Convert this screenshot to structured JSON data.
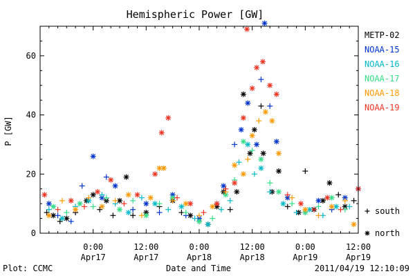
{
  "chart_data": {
    "type": "scatter",
    "title": "Hemispheric Power [GW]",
    "xlabel": "Date and Time",
    "ylabel": "P [GW]",
    "x_unit": "hour of day (clock time), Apr 17 00:00 = 0",
    "xlim": [
      -12,
      60
    ],
    "ylim": [
      0,
      70
    ],
    "y_ticks": [
      0,
      20,
      40,
      60
    ],
    "x_ticks": [
      {
        "x": 0,
        "time": "0:00",
        "date": "Apr17"
      },
      {
        "x": 12,
        "time": "12:00",
        "date": "Apr17"
      },
      {
        "x": 24,
        "time": "0:00",
        "date": "Apr18"
      },
      {
        "x": 36,
        "time": "12:00",
        "date": "Apr18"
      },
      {
        "x": 48,
        "time": "0:00",
        "date": "Apr19"
      },
      {
        "x": 60,
        "time": "12:00",
        "date": "Apr19"
      }
    ],
    "legend_placement": "right",
    "markers": [
      {
        "symbol": "+",
        "label": "south"
      },
      {
        "symbol": "*",
        "label": "north"
      }
    ],
    "series": [
      {
        "name": "METP-02",
        "color": "#000000",
        "points": [
          [
            -10.5,
            7,
            "s"
          ],
          [
            -9,
            6,
            "n"
          ],
          [
            -7.5,
            4,
            "s"
          ],
          [
            -6,
            5,
            "n"
          ],
          [
            -4,
            7,
            "s"
          ],
          [
            -1.5,
            11,
            "n"
          ],
          [
            0,
            13,
            "n"
          ],
          [
            1.5,
            8,
            "s"
          ],
          [
            3,
            11,
            "n"
          ],
          [
            4.5,
            6,
            "s"
          ],
          [
            6,
            11,
            "n"
          ],
          [
            7.5,
            19,
            "n"
          ],
          [
            9,
            6,
            "s"
          ],
          [
            12,
            7,
            "n"
          ],
          [
            15,
            9,
            "s"
          ],
          [
            18,
            11,
            "n"
          ],
          [
            20,
            7,
            "s"
          ],
          [
            22,
            6,
            "n"
          ],
          [
            24,
            4,
            "s"
          ],
          [
            26,
            3,
            "n"
          ],
          [
            28,
            9,
            "n"
          ],
          [
            29.5,
            14,
            "n"
          ],
          [
            31,
            8,
            "s"
          ],
          [
            32.5,
            14,
            "n"
          ],
          [
            34,
            47,
            "n"
          ],
          [
            35.5,
            27,
            "n"
          ],
          [
            36.5,
            35,
            "n"
          ],
          [
            38,
            43,
            "s"
          ],
          [
            38.5,
            27,
            "n"
          ],
          [
            40.5,
            14,
            "n"
          ],
          [
            42,
            21,
            "n"
          ],
          [
            44,
            9,
            "s"
          ],
          [
            46.5,
            7,
            "n"
          ],
          [
            48,
            21,
            "s"
          ],
          [
            50,
            8,
            "n"
          ],
          [
            52,
            11,
            "n"
          ],
          [
            53.5,
            17,
            "n"
          ],
          [
            55.5,
            13,
            "s"
          ],
          [
            57,
            9,
            "n"
          ],
          [
            59,
            11,
            "s"
          ]
        ]
      },
      {
        "name": "NOAA-15",
        "color": "#0033cc",
        "points": [
          [
            -10,
            10,
            "n"
          ],
          [
            -8,
            6,
            "s"
          ],
          [
            -5,
            4,
            "s"
          ],
          [
            -2.5,
            16,
            "s"
          ],
          [
            0,
            26,
            "n"
          ],
          [
            2,
            12,
            "n"
          ],
          [
            3,
            19,
            "s"
          ],
          [
            5,
            16,
            "n"
          ],
          [
            9,
            8,
            "s"
          ],
          [
            12,
            10,
            "n"
          ],
          [
            15,
            7,
            "s"
          ],
          [
            18,
            13,
            "n"
          ],
          [
            21,
            6,
            "s"
          ],
          [
            24,
            5,
            "n"
          ],
          [
            28,
            10,
            "s"
          ],
          [
            29.5,
            16,
            "n"
          ],
          [
            32,
            30,
            "s"
          ],
          [
            33.5,
            35,
            "n"
          ],
          [
            35,
            44,
            "n"
          ],
          [
            37,
            30,
            "n"
          ],
          [
            38,
            52,
            "s"
          ],
          [
            38.8,
            71,
            "n"
          ],
          [
            40,
            43,
            "s"
          ],
          [
            41.5,
            31,
            "n"
          ],
          [
            44,
            12,
            "n"
          ],
          [
            48,
            7,
            "s"
          ],
          [
            51,
            11,
            "n"
          ],
          [
            54,
            8,
            "s"
          ],
          [
            57,
            12,
            "n"
          ],
          [
            60,
            15,
            "n"
          ]
        ]
      },
      {
        "name": "NOAA-16",
        "color": "#00b8c8",
        "points": [
          [
            -10,
            8,
            "s"
          ],
          [
            -7,
            5,
            "n"
          ],
          [
            -4,
            9,
            "s"
          ],
          [
            -1,
            11,
            "n"
          ],
          [
            2,
            13,
            "s"
          ],
          [
            5,
            10,
            "s"
          ],
          [
            8,
            7,
            "n"
          ],
          [
            11,
            12,
            "s"
          ],
          [
            14,
            10,
            "n"
          ],
          [
            17,
            8,
            "s"
          ],
          [
            20,
            9,
            "n"
          ],
          [
            23,
            5,
            "s"
          ],
          [
            26,
            3,
            "n"
          ],
          [
            29,
            8,
            "s"
          ],
          [
            31,
            11,
            "s"
          ],
          [
            33,
            24,
            "s"
          ],
          [
            35,
            30,
            "n"
          ],
          [
            36.5,
            20,
            "s"
          ],
          [
            38,
            22,
            "n"
          ],
          [
            40,
            14,
            "s"
          ],
          [
            43,
            10,
            "n"
          ],
          [
            46,
            7,
            "s"
          ],
          [
            49,
            8,
            "n"
          ],
          [
            52,
            6,
            "s"
          ],
          [
            55,
            9,
            "n"
          ],
          [
            58,
            9,
            "s"
          ]
        ]
      },
      {
        "name": "NOAA-17",
        "color": "#33dd88",
        "points": [
          [
            -9,
            9,
            "n"
          ],
          [
            -6,
            7,
            "s"
          ],
          [
            -3,
            10,
            "n"
          ],
          [
            0,
            9,
            "s"
          ],
          [
            3,
            12,
            "s"
          ],
          [
            6,
            8,
            "n"
          ],
          [
            9,
            11,
            "s"
          ],
          [
            12,
            6,
            "n"
          ],
          [
            15,
            10,
            "s"
          ],
          [
            18,
            12,
            "n"
          ],
          [
            21,
            7,
            "s"
          ],
          [
            24,
            4,
            "n"
          ],
          [
            27,
            5,
            "s"
          ],
          [
            30,
            13,
            "n"
          ],
          [
            32,
            18,
            "s"
          ],
          [
            34,
            31,
            "n"
          ],
          [
            36,
            28,
            "s"
          ],
          [
            38,
            25,
            "n"
          ],
          [
            40,
            17,
            "s"
          ],
          [
            42,
            14,
            "n"
          ],
          [
            45,
            10,
            "s"
          ],
          [
            48,
            7,
            "n"
          ],
          [
            51,
            9,
            "s"
          ],
          [
            54,
            12,
            "n"
          ],
          [
            57,
            8,
            "s"
          ]
        ]
      },
      {
        "name": "NOAA-18",
        "color": "#ff9900",
        "points": [
          [
            -10,
            6,
            "n"
          ],
          [
            -7,
            11,
            "s"
          ],
          [
            -4,
            8,
            "n"
          ],
          [
            -1,
            12,
            "s"
          ],
          [
            2,
            9,
            "n"
          ],
          [
            5,
            11,
            "s"
          ],
          [
            8,
            13,
            "n"
          ],
          [
            11,
            6,
            "s"
          ],
          [
            13,
            12,
            "n"
          ],
          [
            15,
            22,
            "n"
          ],
          [
            16,
            22,
            "n"
          ],
          [
            18,
            11,
            "s"
          ],
          [
            21,
            10,
            "n"
          ],
          [
            24,
            6,
            "s"
          ],
          [
            27,
            9,
            "n"
          ],
          [
            30,
            14,
            "s"
          ],
          [
            32,
            23,
            "n"
          ],
          [
            34,
            20,
            "n"
          ],
          [
            35,
            25,
            "s"
          ],
          [
            36,
            33,
            "n"
          ],
          [
            37.5,
            38,
            "s"
          ],
          [
            39,
            41,
            "n"
          ],
          [
            40.5,
            38,
            "n"
          ],
          [
            42,
            27,
            "n"
          ],
          [
            45,
            12,
            "s"
          ],
          [
            48,
            8,
            "n"
          ],
          [
            51,
            6,
            "s"
          ],
          [
            54,
            9,
            "n"
          ],
          [
            57,
            11,
            "s"
          ],
          [
            59,
            3,
            "n"
          ]
        ]
      },
      {
        "name": "NOAA-19",
        "color": "#ee3322",
        "points": [
          [
            -11,
            13,
            "n"
          ],
          [
            -8,
            8,
            "s"
          ],
          [
            -5,
            11,
            "n"
          ],
          [
            -2,
            9,
            "s"
          ],
          [
            1,
            14,
            "n"
          ],
          [
            4,
            18,
            "n"
          ],
          [
            7,
            10,
            "s"
          ],
          [
            10,
            13,
            "n"
          ],
          [
            14,
            20,
            "n"
          ],
          [
            15.5,
            34,
            "n"
          ],
          [
            17,
            39,
            "n"
          ],
          [
            19,
            12,
            "s"
          ],
          [
            22,
            10,
            "n"
          ],
          [
            25,
            7,
            "s"
          ],
          [
            28,
            10,
            "n"
          ],
          [
            30,
            15,
            "s"
          ],
          [
            32,
            17,
            "n"
          ],
          [
            34,
            39,
            "n"
          ],
          [
            34.8,
            69,
            "n"
          ],
          [
            36,
            49,
            "n"
          ],
          [
            37,
            56,
            "n"
          ],
          [
            38.4,
            58,
            "n"
          ],
          [
            40,
            50,
            "n"
          ],
          [
            41.5,
            47,
            "n"
          ],
          [
            44,
            13,
            "s"
          ],
          [
            47,
            10,
            "n"
          ],
          [
            50,
            8,
            "s"
          ],
          [
            53,
            12,
            "n"
          ],
          [
            56,
            8,
            "s"
          ],
          [
            60,
            15,
            "n"
          ]
        ]
      }
    ]
  },
  "footer": {
    "plot_label": "Plot: CCMC",
    "timestamp": "2011/04/19 12:10:09"
  }
}
